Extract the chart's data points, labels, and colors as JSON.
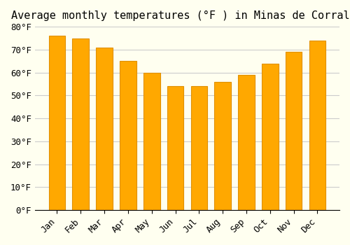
{
  "title": "Average monthly temperatures (°F ) in Minas de Corrales",
  "months": [
    "Jan",
    "Feb",
    "Mar",
    "Apr",
    "May",
    "Jun",
    "Jul",
    "Aug",
    "Sep",
    "Oct",
    "Nov",
    "Dec"
  ],
  "values": [
    76,
    75,
    71,
    65,
    60,
    54,
    54,
    56,
    59,
    64,
    69,
    74
  ],
  "bar_color": "#FFA800",
  "bar_edge_color": "#E09000",
  "ylim": [
    0,
    80
  ],
  "yticks": [
    0,
    10,
    20,
    30,
    40,
    50,
    60,
    70,
    80
  ],
  "background_color": "#FFFFF0",
  "grid_color": "#CCCCCC",
  "title_fontsize": 11,
  "tick_fontsize": 9
}
